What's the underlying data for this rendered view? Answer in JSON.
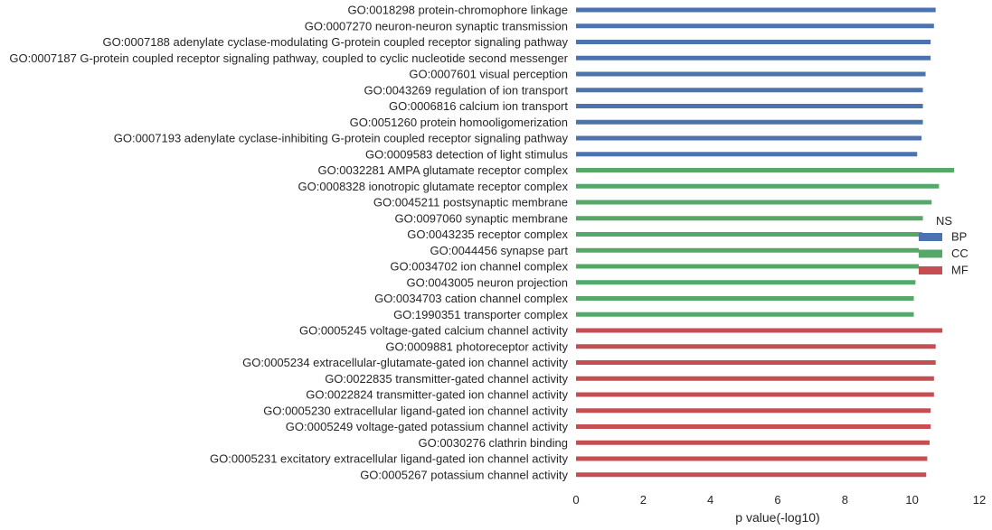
{
  "chart_data": {
    "type": "bar",
    "orientation": "horizontal",
    "xlabel": "p value(-log10)",
    "xlim": [
      0,
      12
    ],
    "xticks": [
      "0",
      "2",
      "4",
      "6",
      "8",
      "10",
      "12"
    ],
    "grid": false,
    "legend": {
      "title": "NS",
      "placement": "right",
      "entries": [
        {
          "name": "BP",
          "color": "#4c72b0"
        },
        {
          "name": "CC",
          "color": "#55a868"
        },
        {
          "name": "MF",
          "color": "#c44e52"
        }
      ]
    },
    "categories": [
      "GO:0018298 protein-chromophore linkage",
      "GO:0007270 neuron-neuron synaptic transmission",
      "GO:0007188 adenylate cyclase-modulating G-protein coupled receptor signaling pathway",
      "GO:0007187 G-protein coupled receptor signaling pathway, coupled to cyclic nucleotide second messenger",
      "GO:0007601 visual perception",
      "GO:0043269 regulation of ion transport",
      "GO:0006816 calcium ion transport",
      "GO:0051260 protein homooligomerization",
      "GO:0007193 adenylate cyclase-inhibiting G-protein coupled receptor signaling pathway",
      "GO:0009583 detection of light stimulus",
      "GO:0032281 AMPA glutamate receptor complex",
      "GO:0008328 ionotropic glutamate receptor complex",
      "GO:0045211 postsynaptic membrane",
      "GO:0097060 synaptic membrane",
      "GO:0043235 receptor complex",
      "GO:0044456 synapse part",
      "GO:0034702 ion channel complex",
      "GO:0043005 neuron projection",
      "GO:0034703 cation channel complex",
      "GO:1990351 transporter complex",
      "GO:0005245 voltage-gated calcium channel activity",
      "GO:0009881 photoreceptor activity",
      "GO:0005234 extracellular-glutamate-gated ion channel activity",
      "GO:0022835 transmitter-gated channel activity",
      "GO:0022824 transmitter-gated ion channel activity",
      "GO:0005230 extracellular ligand-gated ion channel activity",
      "GO:0005249 voltage-gated potassium channel activity",
      "GO:0030276 clathrin binding",
      "GO:0005231 excitatory extracellular ligand-gated ion channel activity",
      "GO:0005267 potassium channel activity"
    ],
    "groups": [
      "BP",
      "BP",
      "BP",
      "BP",
      "BP",
      "BP",
      "BP",
      "BP",
      "BP",
      "BP",
      "CC",
      "CC",
      "CC",
      "CC",
      "CC",
      "CC",
      "CC",
      "CC",
      "CC",
      "CC",
      "MF",
      "MF",
      "MF",
      "MF",
      "MF",
      "MF",
      "MF",
      "MF",
      "MF",
      "MF"
    ],
    "values": [
      10.7,
      10.65,
      10.55,
      10.55,
      10.4,
      10.32,
      10.32,
      10.32,
      10.28,
      10.15,
      11.25,
      10.8,
      10.58,
      10.32,
      10.3,
      10.2,
      10.2,
      10.1,
      10.05,
      10.05,
      10.9,
      10.7,
      10.7,
      10.65,
      10.65,
      10.55,
      10.55,
      10.52,
      10.45,
      10.42
    ]
  }
}
